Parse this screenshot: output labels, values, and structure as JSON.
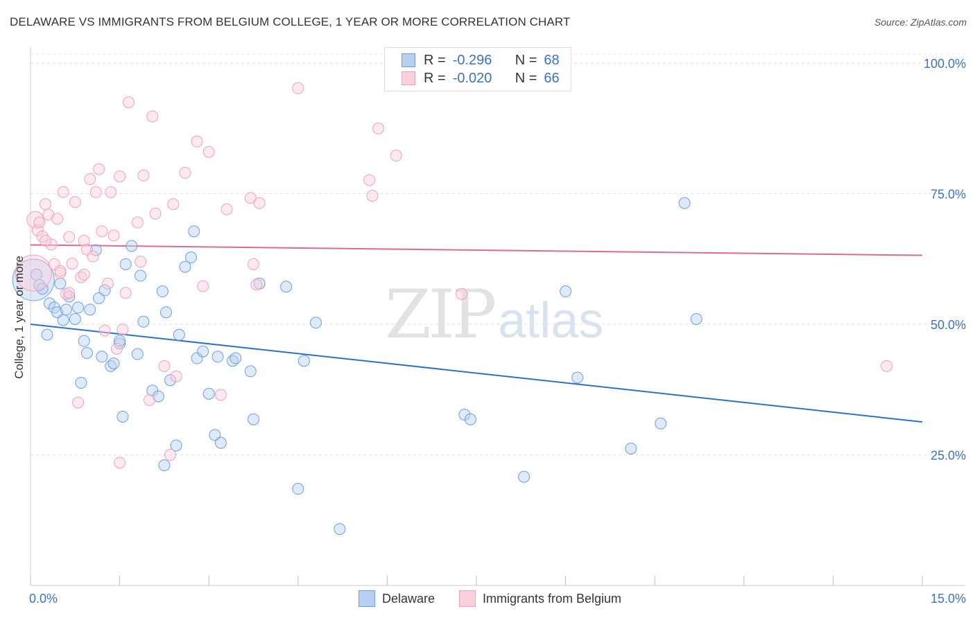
{
  "title": "DELAWARE VS IMMIGRANTS FROM BELGIUM COLLEGE, 1 YEAR OR MORE CORRELATION CHART",
  "source": "Source: ZipAtlas.com",
  "watermark": {
    "zip": "ZIP",
    "atlas": "atlas"
  },
  "legend": {
    "rows": [
      {
        "r_label": "R =",
        "r_value": "-0.296",
        "n_label": "N =",
        "n_value": "68"
      },
      {
        "r_label": "R =",
        "r_value": "-0.020",
        "n_label": "N =",
        "n_value": "66"
      }
    ]
  },
  "chart_data": {
    "type": "scatter",
    "title": "DELAWARE VS IMMIGRANTS FROM BELGIUM COLLEGE, 1 YEAR OR MORE CORRELATION CHART",
    "xlabel": "",
    "ylabel": "College, 1 year or more",
    "xlim": [
      0,
      15
    ],
    "ylim": [
      0,
      102
    ],
    "x_tick_labels": [
      "0.0%",
      "15.0%"
    ],
    "y_ticks": [
      25,
      50,
      75,
      100
    ],
    "y_tick_labels": [
      "25.0%",
      "50.0%",
      "75.0%",
      "100.0%"
    ],
    "grid": true,
    "legend_position": "bottom-center",
    "colors": {
      "delaware": "#6a9ee0",
      "belgium": "#f0a0bc",
      "delaware_line": "#2d6fcc",
      "belgium_line": "#e06890"
    },
    "series": [
      {
        "name": "Delaware",
        "r": -0.296,
        "n": 68,
        "trend": {
          "x0": 0.0,
          "y0": 50.0,
          "x1": 15.0,
          "y1": 31.3
        },
        "points": [
          [
            0.05,
            58.5,
            30
          ],
          [
            0.1,
            59.5,
            8
          ],
          [
            0.15,
            57.5,
            8
          ],
          [
            0.2,
            56.8,
            8
          ],
          [
            0.28,
            48.0,
            8
          ],
          [
            0.32,
            54.0,
            8
          ],
          [
            0.4,
            53.2,
            8
          ],
          [
            0.45,
            52.3,
            8
          ],
          [
            0.5,
            57.8,
            8
          ],
          [
            0.55,
            50.8,
            8
          ],
          [
            0.6,
            52.8,
            8
          ],
          [
            0.65,
            55.3,
            8
          ],
          [
            0.75,
            51.0,
            8
          ],
          [
            0.8,
            53.2,
            8
          ],
          [
            0.85,
            38.8,
            8
          ],
          [
            0.9,
            46.8,
            8
          ],
          [
            0.95,
            44.5,
            8
          ],
          [
            1.0,
            52.8,
            8
          ],
          [
            1.1,
            64.2,
            8
          ],
          [
            1.15,
            55.0,
            8
          ],
          [
            1.2,
            43.8,
            8
          ],
          [
            1.25,
            56.5,
            8
          ],
          [
            1.35,
            42.0,
            8
          ],
          [
            1.4,
            42.5,
            8
          ],
          [
            1.5,
            46.3,
            8
          ],
          [
            1.55,
            32.3,
            8
          ],
          [
            1.6,
            61.5,
            8
          ],
          [
            1.7,
            65.0,
            8
          ],
          [
            1.8,
            44.3,
            8
          ],
          [
            1.85,
            59.3,
            8
          ],
          [
            1.9,
            50.5,
            8
          ],
          [
            2.05,
            37.3,
            8
          ],
          [
            2.15,
            36.2,
            8
          ],
          [
            2.22,
            56.3,
            8
          ],
          [
            2.28,
            52.3,
            8
          ],
          [
            2.35,
            39.3,
            8
          ],
          [
            2.45,
            26.8,
            8
          ],
          [
            2.5,
            48.0,
            8
          ],
          [
            2.6,
            61.0,
            8
          ],
          [
            2.7,
            62.8,
            8
          ],
          [
            2.75,
            67.8,
            8
          ],
          [
            2.8,
            43.5,
            8
          ],
          [
            2.9,
            44.8,
            8
          ],
          [
            3.0,
            36.7,
            8
          ],
          [
            3.1,
            28.8,
            8
          ],
          [
            3.2,
            27.3,
            8
          ],
          [
            3.15,
            43.8,
            8
          ],
          [
            3.4,
            43.0,
            8
          ],
          [
            3.45,
            43.5,
            8
          ],
          [
            3.7,
            41.0,
            8
          ],
          [
            3.75,
            31.8,
            8
          ],
          [
            3.85,
            57.8,
            8
          ],
          [
            4.3,
            57.2,
            8
          ],
          [
            4.5,
            18.5,
            8
          ],
          [
            4.6,
            43.0,
            8
          ],
          [
            4.8,
            50.3,
            8
          ],
          [
            5.2,
            10.8,
            8
          ],
          [
            7.3,
            32.7,
            8
          ],
          [
            7.4,
            31.8,
            8
          ],
          [
            8.3,
            20.8,
            8
          ],
          [
            9.0,
            56.3,
            8
          ],
          [
            9.2,
            39.8,
            8
          ],
          [
            10.1,
            26.2,
            8
          ],
          [
            10.6,
            31.0,
            8
          ],
          [
            11.0,
            73.2,
            8
          ],
          [
            11.2,
            51.0,
            8
          ],
          [
            1.5,
            46.8,
            8
          ],
          [
            2.25,
            23.0,
            8
          ]
        ]
      },
      {
        "name": "Immigrants from Belgium",
        "r": -0.02,
        "n": 66,
        "trend": {
          "x0": 0.0,
          "y0": 65.2,
          "x1": 15.0,
          "y1": 63.2
        },
        "points": [
          [
            0.05,
            59.8,
            26
          ],
          [
            0.08,
            70.0,
            12
          ],
          [
            0.12,
            68.0,
            8
          ],
          [
            0.15,
            69.5,
            8
          ],
          [
            0.2,
            66.8,
            8
          ],
          [
            0.25,
            73.0,
            8
          ],
          [
            0.3,
            71.0,
            8
          ],
          [
            0.35,
            65.3,
            8
          ],
          [
            0.4,
            61.5,
            8
          ],
          [
            0.45,
            70.2,
            8
          ],
          [
            0.5,
            59.8,
            8
          ],
          [
            0.55,
            75.3,
            8
          ],
          [
            0.6,
            55.8,
            8
          ],
          [
            0.65,
            66.7,
            8
          ],
          [
            0.7,
            61.6,
            8
          ],
          [
            0.75,
            73.4,
            8
          ],
          [
            0.8,
            35.0,
            8
          ],
          [
            0.85,
            59.0,
            8
          ],
          [
            0.9,
            66.0,
            8
          ],
          [
            0.95,
            64.3,
            8
          ],
          [
            1.0,
            77.8,
            8
          ],
          [
            1.05,
            63.0,
            8
          ],
          [
            1.1,
            75.3,
            8
          ],
          [
            1.15,
            79.7,
            8
          ],
          [
            1.2,
            67.8,
            8
          ],
          [
            1.25,
            48.8,
            8
          ],
          [
            1.3,
            57.8,
            8
          ],
          [
            1.35,
            75.3,
            8
          ],
          [
            1.4,
            67.0,
            8
          ],
          [
            1.5,
            78.3,
            8
          ],
          [
            1.55,
            49.0,
            8
          ],
          [
            1.6,
            56.0,
            8
          ],
          [
            1.65,
            92.5,
            8
          ],
          [
            1.8,
            69.5,
            8
          ],
          [
            1.85,
            62.0,
            8
          ],
          [
            1.9,
            78.5,
            8
          ],
          [
            2.05,
            89.8,
            8
          ],
          [
            2.1,
            71.2,
            8
          ],
          [
            2.25,
            42.0,
            8
          ],
          [
            2.4,
            73.0,
            8
          ],
          [
            2.45,
            40.0,
            8
          ],
          [
            2.6,
            79.0,
            8
          ],
          [
            2.8,
            85.0,
            8
          ],
          [
            2.9,
            57.3,
            8
          ],
          [
            3.0,
            83.0,
            8
          ],
          [
            3.2,
            36.5,
            8
          ],
          [
            3.3,
            72.0,
            8
          ],
          [
            3.7,
            74.2,
            8
          ],
          [
            3.75,
            61.5,
            8
          ],
          [
            3.8,
            57.6,
            8
          ],
          [
            3.85,
            73.2,
            8
          ],
          [
            4.5,
            95.2,
            8
          ],
          [
            5.7,
            77.6,
            8
          ],
          [
            5.75,
            74.6,
            8
          ],
          [
            5.85,
            87.5,
            8
          ],
          [
            6.15,
            82.3,
            8
          ],
          [
            7.25,
            55.8,
            8
          ],
          [
            14.4,
            42.0,
            8
          ],
          [
            1.45,
            45.3,
            8
          ],
          [
            2.0,
            35.5,
            8
          ],
          [
            2.35,
            25.0,
            8
          ],
          [
            1.5,
            23.5,
            8
          ],
          [
            0.9,
            59.5,
            8
          ],
          [
            0.65,
            56.0,
            8
          ],
          [
            0.5,
            60.2,
            8
          ],
          [
            0.25,
            66.0,
            8
          ]
        ]
      }
    ]
  }
}
